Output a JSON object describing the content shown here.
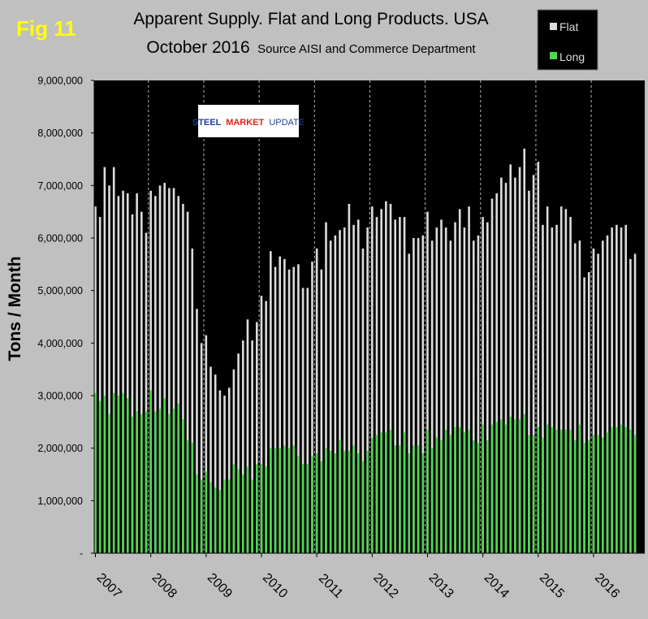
{
  "fig_label": "Fig 11",
  "colors": {
    "background": "#c0c0c0",
    "plot_bg": "#000000",
    "flat": "#dcdcdc",
    "long": "#4fd64f",
    "fig_label": "#ffff00"
  },
  "logo": {
    "word1": "STEEL",
    "word2": "MARKET",
    "word3": "UPDATE"
  },
  "chart_data": {
    "type": "bar",
    "title": "Apparent Supply. Flat and Long Products. USA",
    "subtitle_main": "October 2016",
    "subtitle_source": "Source AISI and Commerce Department",
    "ylabel": "Tons / Month",
    "xlabel": "",
    "ylim": [
      0,
      9000000
    ],
    "yticks": [
      0,
      1000000,
      2000000,
      3000000,
      4000000,
      5000000,
      6000000,
      7000000,
      8000000,
      9000000
    ],
    "ytick_labels": [
      "-",
      "1,000,000",
      "2,000,000",
      "3,000,000",
      "4,000,000",
      "5,000,000",
      "6,000,000",
      "7,000,000",
      "8,000,000",
      "9,000,000"
    ],
    "year_labels": [
      "2007",
      "2008",
      "2009",
      "2010",
      "2011",
      "2012",
      "2013",
      "2014",
      "2015",
      "2016"
    ],
    "legend": [
      {
        "name": "Flat"
      },
      {
        "name": "Long"
      }
    ],
    "legend_position": "top-right",
    "grid": "vertical dashed at year boundaries",
    "series": [
      {
        "name": "Flat",
        "values": [
          6600000,
          6400000,
          7350000,
          7000000,
          7350000,
          6800000,
          6900000,
          6850000,
          6450000,
          6850000,
          6500000,
          6100000,
          6900000,
          6800000,
          7000000,
          7050000,
          6950000,
          6950000,
          6800000,
          6650000,
          6500000,
          5800000,
          4650000,
          4000000,
          4150000,
          3550000,
          3400000,
          3100000,
          3000000,
          3150000,
          3500000,
          3800000,
          4050000,
          4450000,
          4050000,
          4400000,
          4900000,
          4800000,
          5750000,
          5450000,
          5650000,
          5600000,
          5400000,
          5450000,
          5500000,
          5050000,
          5050000,
          5550000,
          5800000,
          5400000,
          6300000,
          5950000,
          6050000,
          6150000,
          6200000,
          6650000,
          6250000,
          6350000,
          5800000,
          6200000,
          6600000,
          6400000,
          6550000,
          6700000,
          6650000,
          6350000,
          6400000,
          6400000,
          5700000,
          6000000,
          6000000,
          6050000,
          6500000,
          5950000,
          6200000,
          6350000,
          6200000,
          5950000,
          6300000,
          6550000,
          6200000,
          6600000,
          5950000,
          6050000,
          6400000,
          6300000,
          6750000,
          6850000,
          7150000,
          7050000,
          7400000,
          7150000,
          7350000,
          7700000,
          6900000,
          7200000,
          7450000,
          6250000,
          6600000,
          6200000,
          6250000,
          6600000,
          6550000,
          6400000,
          5900000,
          5950000,
          5250000,
          5350000,
          5800000,
          5700000,
          5950000,
          6050000,
          6200000,
          6250000,
          6200000,
          6250000,
          5600000,
          5700000
        ]
      },
      {
        "name": "Long",
        "values": [
          3050000,
          2900000,
          3000000,
          2650000,
          3050000,
          3000000,
          3050000,
          2950000,
          2600000,
          2700000,
          2650000,
          2700000,
          3100000,
          2700000,
          2750000,
          2950000,
          2650000,
          2750000,
          2850000,
          2550000,
          2150000,
          2100000,
          1500000,
          1400000,
          1550000,
          1350000,
          1250000,
          1200000,
          1400000,
          1400000,
          1700000,
          1600000,
          1500000,
          1650000,
          1400000,
          1700000,
          1700000,
          1650000,
          2000000,
          2000000,
          2000000,
          2050000,
          2000000,
          2050000,
          1850000,
          1700000,
          1700000,
          1850000,
          1900000,
          1750000,
          2000000,
          1950000,
          1900000,
          2150000,
          1950000,
          1950000,
          2050000,
          1900000,
          1750000,
          1950000,
          2200000,
          2250000,
          2300000,
          2300000,
          2350000,
          2050000,
          2050000,
          2300000,
          1900000,
          2050000,
          2050000,
          1900000,
          2350000,
          2000000,
          2200000,
          2150000,
          2350000,
          2250000,
          2400000,
          2400000,
          2300000,
          2350000,
          2150000,
          2100000,
          2450000,
          2150000,
          2450000,
          2500000,
          2550000,
          2450000,
          2600000,
          2550000,
          2550000,
          2650000,
          2250000,
          2250000,
          2400000,
          2200000,
          2450000,
          2400000,
          2350000,
          2350000,
          2350000,
          2350000,
          2150000,
          2450000,
          2100000,
          2150000,
          2250000,
          2250000,
          2200000,
          2300000,
          2400000,
          2400000,
          2450000,
          2400000,
          2350000,
          2250000
        ]
      }
    ]
  }
}
